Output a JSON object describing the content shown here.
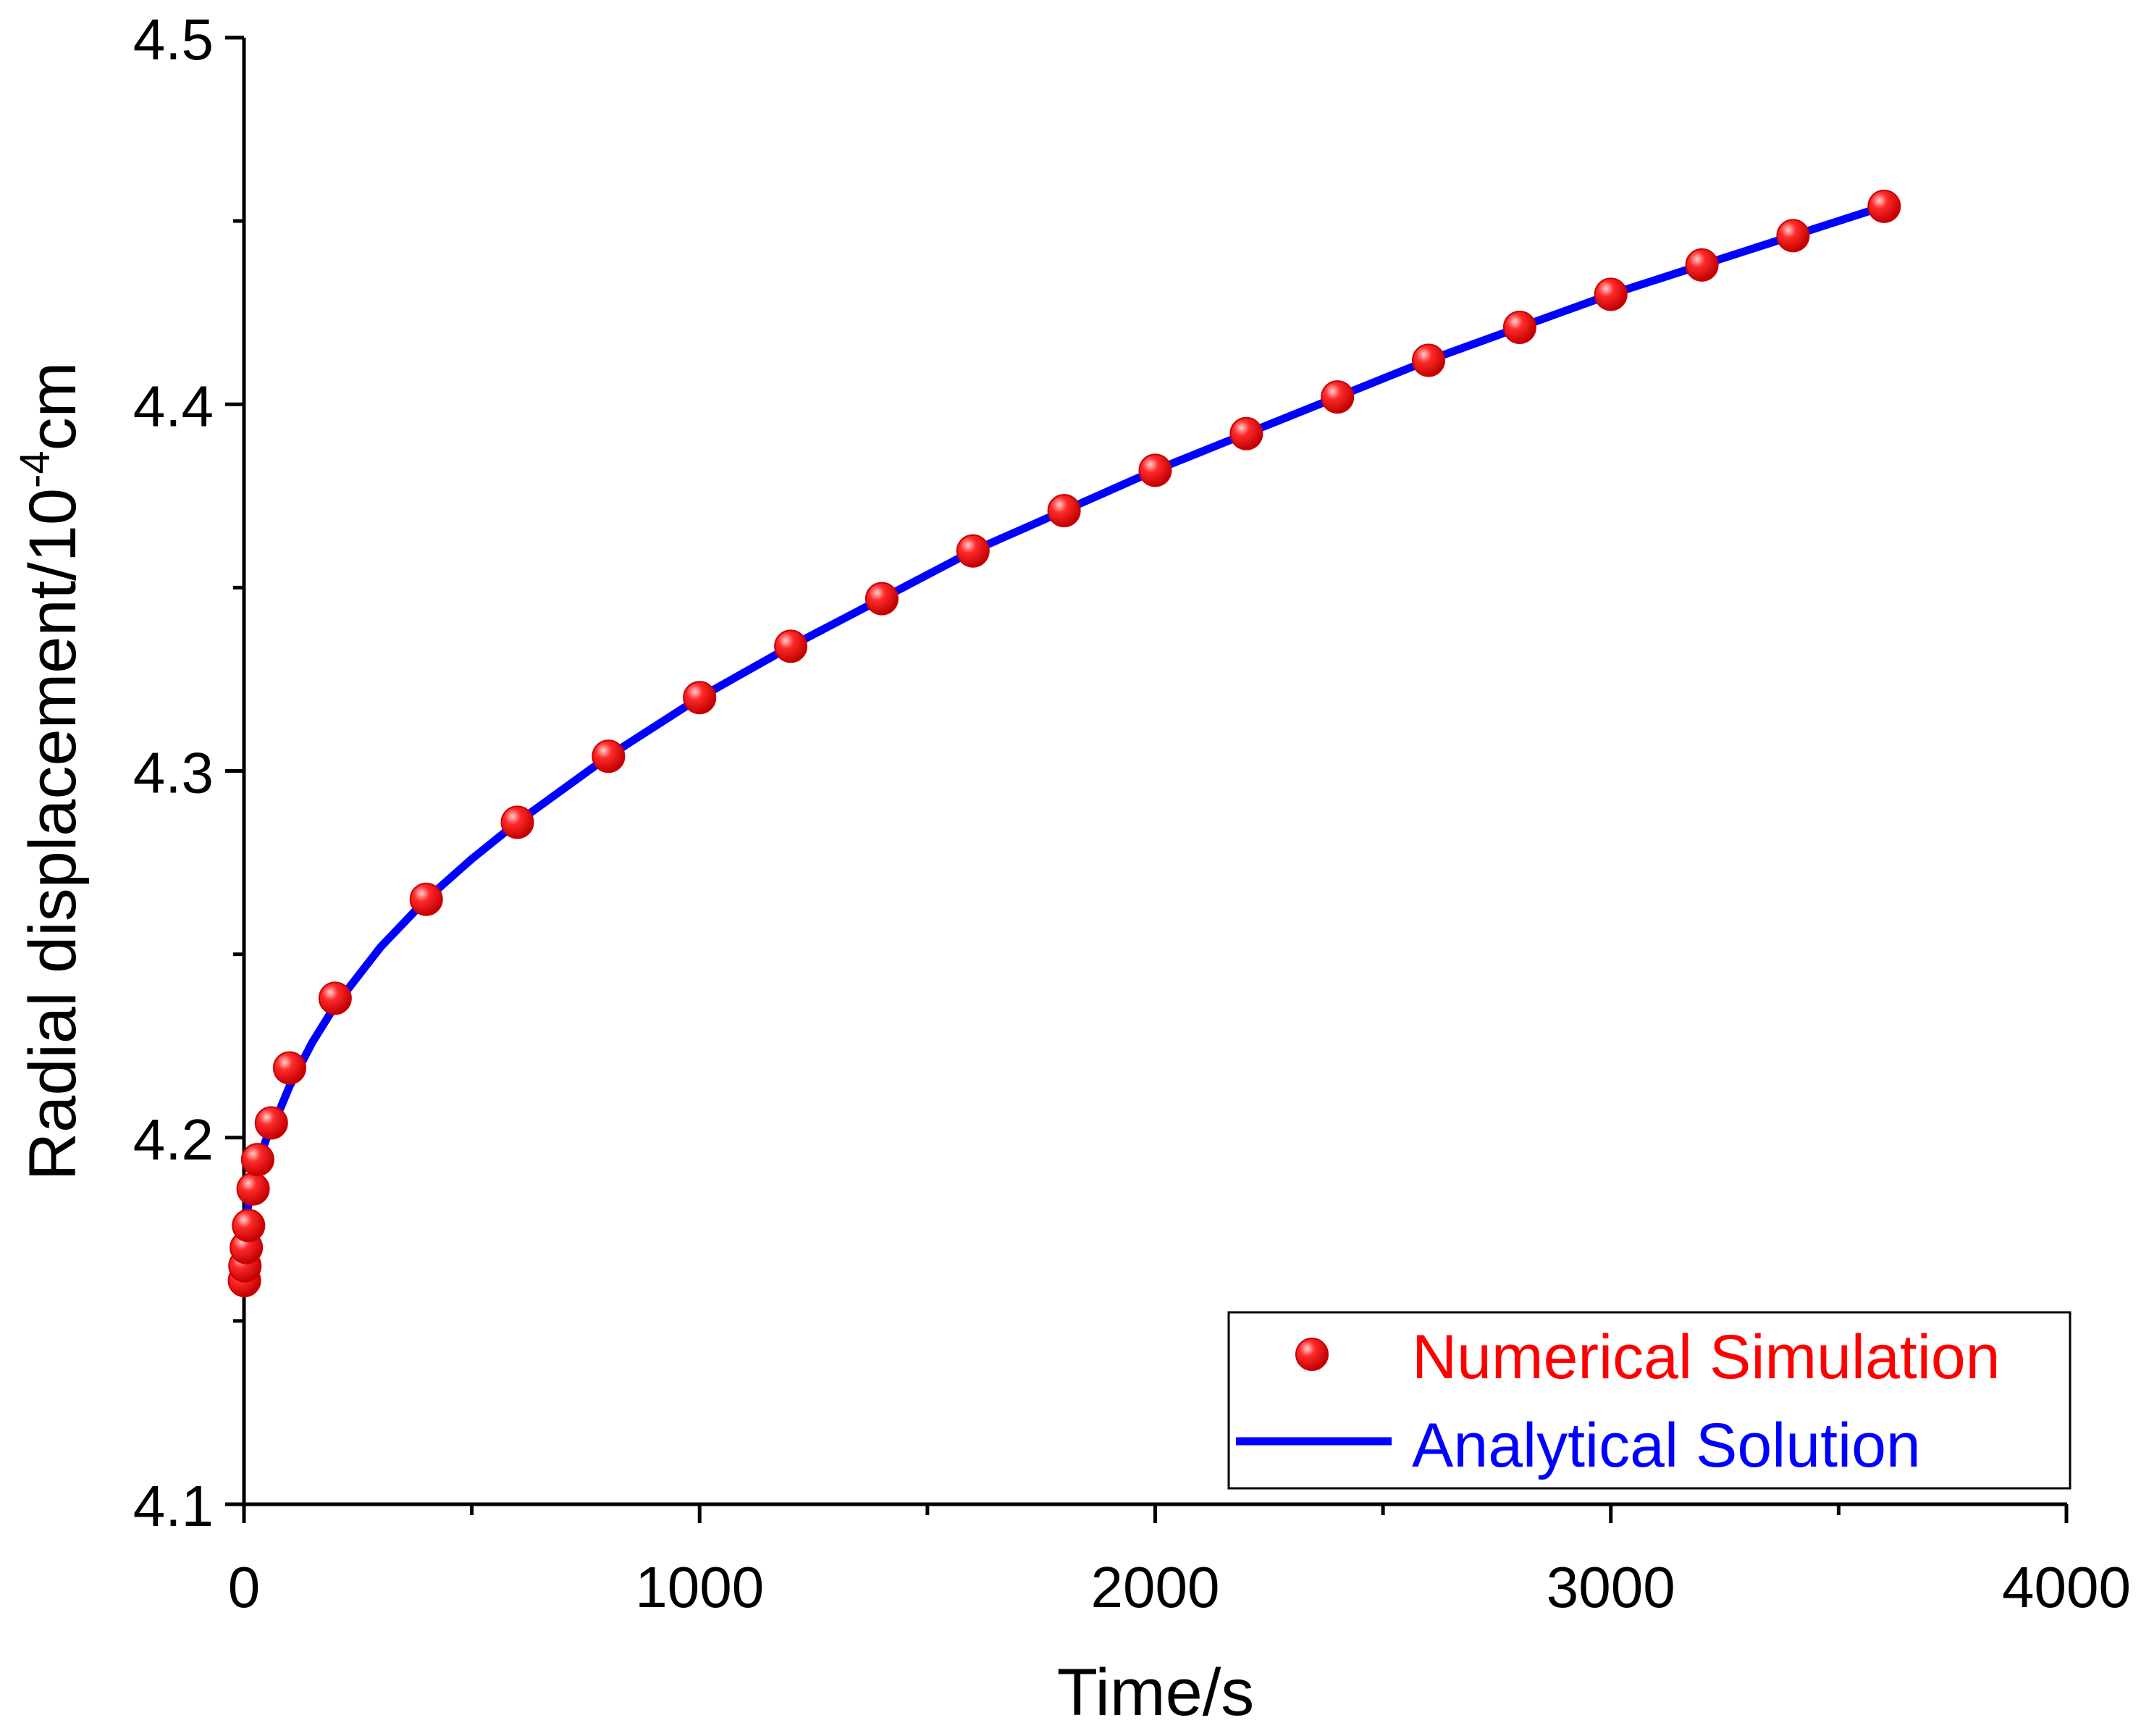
{
  "chart_data": {
    "type": "scatter",
    "title": "",
    "xlabel": "Time/s",
    "ylabel": {
      "base": "Radial displacement/10",
      "exponent": "-4",
      "unit": "cm"
    },
    "xlim": [
      0,
      4000
    ],
    "ylim": [
      4.1,
      4.5
    ],
    "x_major_ticks": [
      0,
      1000,
      2000,
      3000,
      4000
    ],
    "x_tick_labels": [
      "0",
      "1000",
      "2000",
      "3000",
      "4000"
    ],
    "x_minor_ticks": [
      500,
      1500,
      2500,
      3500
    ],
    "y_major_ticks": [
      4.1,
      4.2,
      4.3,
      4.4,
      4.5
    ],
    "y_tick_labels": [
      "4.1",
      "4.2",
      "4.3",
      "4.4",
      "4.5"
    ],
    "y_minor_ticks": [
      4.15,
      4.25,
      4.35,
      4.45
    ],
    "grid": false,
    "legend_position": "bottom-right",
    "series": [
      {
        "name": "Numerical Simulation",
        "kind": "markers",
        "color": "#ff0000",
        "x": [
          1,
          2,
          5,
          10,
          20,
          30,
          60,
          100,
          200,
          400,
          600,
          800,
          1000,
          1200,
          1400,
          1600,
          1800,
          2000,
          2200,
          2400,
          2600,
          2800,
          3000,
          3200,
          3400,
          3600
        ],
        "y": [
          4.161,
          4.165,
          4.17,
          4.176,
          4.186,
          4.194,
          4.204,
          4.219,
          4.238,
          4.265,
          4.286,
          4.304,
          4.32,
          4.334,
          4.347,
          4.36,
          4.371,
          4.382,
          4.392,
          4.402,
          4.412,
          4.421,
          4.43,
          4.438,
          4.446,
          4.454
        ]
      },
      {
        "name": "Analytical Solution",
        "kind": "line",
        "color": "#0000ff",
        "x": [
          0,
          5,
          10,
          20,
          30,
          50,
          80,
          100,
          150,
          200,
          300,
          400,
          500,
          600,
          700,
          800,
          900,
          1000,
          1200,
          1400,
          1600,
          1800,
          2000,
          2200,
          2400,
          2600,
          2800,
          3000,
          3200,
          3400,
          3600
        ],
        "y": [
          4.17,
          4.178,
          4.182,
          4.188,
          4.193,
          4.2,
          4.208,
          4.214,
          4.226,
          4.236,
          4.252,
          4.265,
          4.276,
          4.286,
          4.295,
          4.304,
          4.312,
          4.32,
          4.334,
          4.347,
          4.36,
          4.371,
          4.382,
          4.392,
          4.402,
          4.412,
          4.421,
          4.43,
          4.438,
          4.446,
          4.454
        ]
      }
    ]
  }
}
